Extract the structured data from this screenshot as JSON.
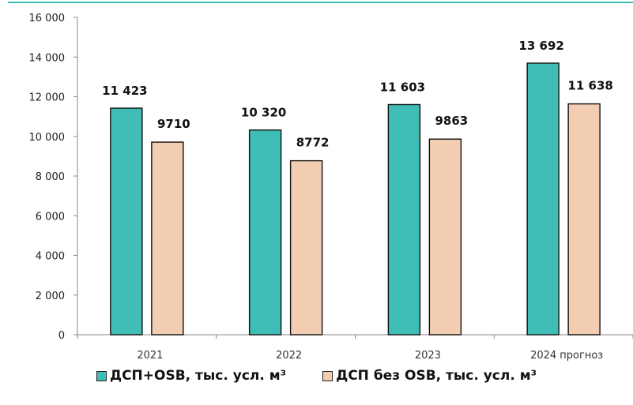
{
  "chart_data": {
    "type": "bar",
    "categories": [
      "2021",
      "2022",
      "2023",
      "2024 прогноз"
    ],
    "series": [
      {
        "name": "ДСП+OSB, тыс. усл. м³",
        "values": [
          11423,
          10320,
          11603,
          13692
        ],
        "labels": [
          "11 423",
          "10 320",
          "11 603",
          "13 692"
        ],
        "color": "#40bdb7"
      },
      {
        "name": "ДСП без OSB, тыс. усл. м³",
        "values": [
          9710,
          8772,
          9863,
          11638
        ],
        "labels": [
          "9710",
          "8772",
          "9863",
          "11 638"
        ],
        "color": "#f3cdb2"
      }
    ],
    "ylim": [
      0,
      16000
    ],
    "yticks": [
      0,
      2000,
      4000,
      6000,
      8000,
      10000,
      12000,
      14000,
      16000
    ],
    "ytick_labels": [
      "0",
      "2 000",
      "4 000",
      "6 000",
      "8 000",
      "10 000",
      "12 000",
      "14 000",
      "16 000"
    ],
    "grid": false,
    "legend_position": "bottom",
    "top_rule_color": "#40bdb7"
  }
}
